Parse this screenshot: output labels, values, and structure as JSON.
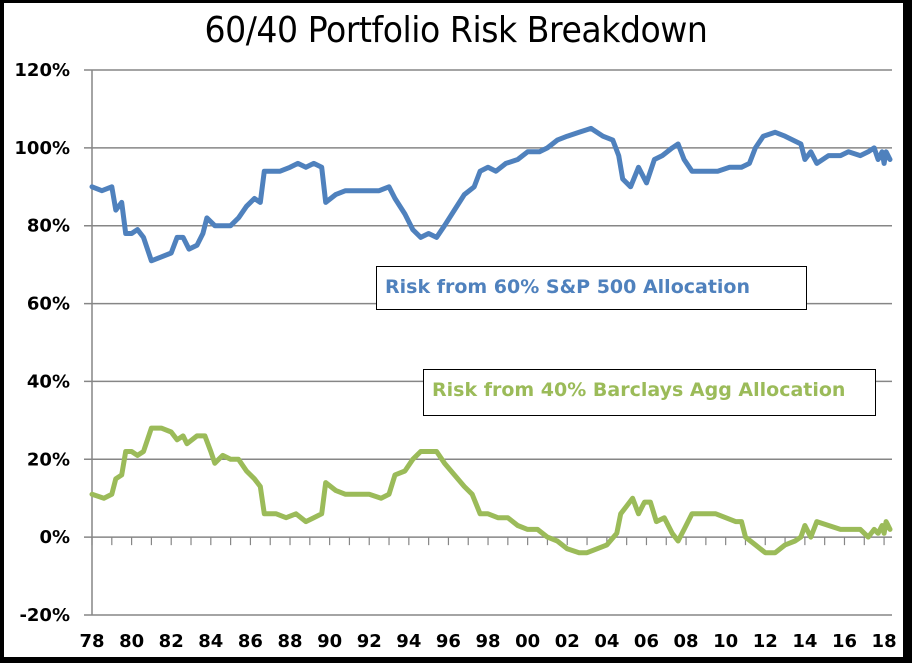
{
  "chart_data": {
    "type": "line",
    "title": "60/40 Portfolio Risk Breakdown",
    "xlabel": "",
    "ylabel": "",
    "ylim": [
      -20,
      120
    ],
    "xlim": [
      1978,
      2018.3
    ],
    "grid": true,
    "y_ticks": [
      "-20%",
      "0%",
      "20%",
      "40%",
      "60%",
      "80%",
      "100%",
      "120%"
    ],
    "y_tick_values": [
      -20,
      0,
      20,
      40,
      60,
      80,
      100,
      120
    ],
    "x_ticks": [
      "78",
      "80",
      "82",
      "84",
      "86",
      "88",
      "90",
      "92",
      "94",
      "96",
      "98",
      "00",
      "02",
      "04",
      "06",
      "08",
      "10",
      "12",
      "14",
      "16",
      "18"
    ],
    "x_tick_values": [
      1978,
      1980,
      1982,
      1984,
      1986,
      1988,
      1990,
      1992,
      1994,
      1996,
      1998,
      2000,
      2002,
      2004,
      2006,
      2008,
      2010,
      2012,
      2014,
      2016,
      2018
    ],
    "series": [
      {
        "name": "Risk from 60% S&P 500 Allocation",
        "color": "#4f81bd",
        "x": [
          1978.0,
          1978.5,
          1979.0,
          1979.2,
          1979.5,
          1979.7,
          1980.0,
          1980.3,
          1980.6,
          1981.0,
          1981.5,
          1982.0,
          1982.3,
          1982.6,
          1982.9,
          1983.3,
          1983.6,
          1983.8,
          1984.2,
          1984.5,
          1985.0,
          1985.4,
          1985.8,
          1986.2,
          1986.5,
          1986.7,
          1987.0,
          1987.5,
          1988.0,
          1988.4,
          1988.8,
          1989.2,
          1989.6,
          1989.8,
          1990.3,
          1990.8,
          1991.3,
          1992.0,
          1992.5,
          1993.0,
          1993.3,
          1993.8,
          1994.2,
          1994.6,
          1995.0,
          1995.4,
          1995.8,
          1996.3,
          1996.8,
          1997.3,
          1997.6,
          1998.0,
          1998.4,
          1998.9,
          1999.5,
          2000.0,
          2000.6,
          2001.0,
          2001.5,
          2002.0,
          2002.6,
          2003.2,
          2003.8,
          2004.3,
          2004.6,
          2004.8,
          2005.2,
          2005.6,
          2006.0,
          2006.4,
          2006.8,
          2007.3,
          2007.6,
          2007.9,
          2008.3,
          2009.0,
          2009.6,
          2010.2,
          2010.8,
          2011.2,
          2011.5,
          2011.9,
          2012.5,
          2013.0,
          2013.4,
          2013.8,
          2014.0,
          2014.3,
          2014.6,
          2015.2,
          2015.8,
          2016.2,
          2016.8,
          2017.2,
          2017.5,
          2017.7,
          2017.9,
          2018.0,
          2018.1,
          2018.3
        ],
        "values": [
          90,
          89,
          90,
          84,
          86,
          78,
          78,
          79,
          77,
          71,
          72,
          73,
          77,
          77,
          74,
          75,
          78,
          82,
          80,
          80,
          80,
          82,
          85,
          87,
          86,
          94,
          94,
          94,
          95,
          96,
          95,
          96,
          95,
          86,
          88,
          89,
          89,
          89,
          89,
          90,
          87,
          83,
          79,
          77,
          78,
          77,
          80,
          84,
          88,
          90,
          94,
          95,
          94,
          96,
          97,
          99,
          99,
          100,
          102,
          103,
          104,
          105,
          103,
          102,
          98,
          92,
          90,
          95,
          91,
          97,
          98,
          100,
          101,
          97,
          94,
          94,
          94,
          95,
          95,
          96,
          100,
          103,
          104,
          103,
          102,
          101,
          97,
          99,
          96,
          98,
          98,
          99,
          98,
          99,
          100,
          97,
          99,
          96,
          99,
          97
        ]
      },
      {
        "name": "Risk from 40% Barclays Agg Allocation",
        "color": "#9bbb59",
        "x": [
          1978.0,
          1978.6,
          1979.0,
          1979.2,
          1979.5,
          1979.7,
          1980.0,
          1980.3,
          1980.6,
          1981.0,
          1981.5,
          1982.0,
          1982.3,
          1982.6,
          1982.8,
          1983.3,
          1983.7,
          1984.0,
          1984.2,
          1984.6,
          1985.0,
          1985.4,
          1985.8,
          1986.2,
          1986.5,
          1986.7,
          1987.3,
          1987.8,
          1988.3,
          1988.8,
          1989.2,
          1989.6,
          1989.8,
          1990.3,
          1990.8,
          1991.3,
          1992.0,
          1992.6,
          1993.0,
          1993.3,
          1993.8,
          1994.2,
          1994.6,
          1995.0,
          1995.4,
          1995.8,
          1996.3,
          1996.8,
          1997.2,
          1997.6,
          1998.0,
          1998.5,
          1999.0,
          1999.5,
          2000.0,
          2000.5,
          2001.0,
          2001.5,
          2002.0,
          2002.6,
          2003.0,
          2003.5,
          2004.0,
          2004.5,
          2004.7,
          2005.0,
          2005.3,
          2005.6,
          2005.9,
          2006.2,
          2006.5,
          2006.9,
          2007.3,
          2007.6,
          2007.9,
          2008.3,
          2008.8,
          2009.5,
          2010.0,
          2010.5,
          2010.8,
          2011.0,
          2011.5,
          2012.0,
          2012.5,
          2013.0,
          2013.5,
          2013.8,
          2014.0,
          2014.3,
          2014.6,
          2015.2,
          2015.8,
          2016.2,
          2016.8,
          2017.2,
          2017.5,
          2017.7,
          2017.9,
          2018.0,
          2018.1,
          2018.3
        ],
        "values": [
          11,
          10,
          11,
          15,
          16,
          22,
          22,
          21,
          22,
          28,
          28,
          27,
          25,
          26,
          24,
          26,
          26,
          22,
          19,
          21,
          20,
          20,
          17,
          15,
          13,
          6,
          6,
          5,
          6,
          4,
          5,
          6,
          14,
          12,
          11,
          11,
          11,
          10,
          11,
          16,
          17,
          20,
          22,
          22,
          22,
          19,
          16,
          13,
          11,
          6,
          6,
          5,
          5,
          3,
          2,
          2,
          0,
          -1,
          -3,
          -4,
          -4,
          -3,
          -2,
          1,
          6,
          8,
          10,
          6,
          9,
          9,
          4,
          5,
          1,
          -1,
          2,
          6,
          6,
          6,
          5,
          4,
          4,
          0,
          -2,
          -4,
          -4,
          -2,
          -1,
          0,
          3,
          0,
          4,
          3,
          2,
          2,
          2,
          0,
          2,
          1,
          3,
          1,
          4,
          2
        ]
      }
    ],
    "legend": [
      {
        "label": "Risk from 60% S&P 500 Allocation",
        "placement": "center"
      },
      {
        "label": "Risk from 40% Barclays Agg Allocation",
        "placement": "center-lower"
      }
    ]
  }
}
